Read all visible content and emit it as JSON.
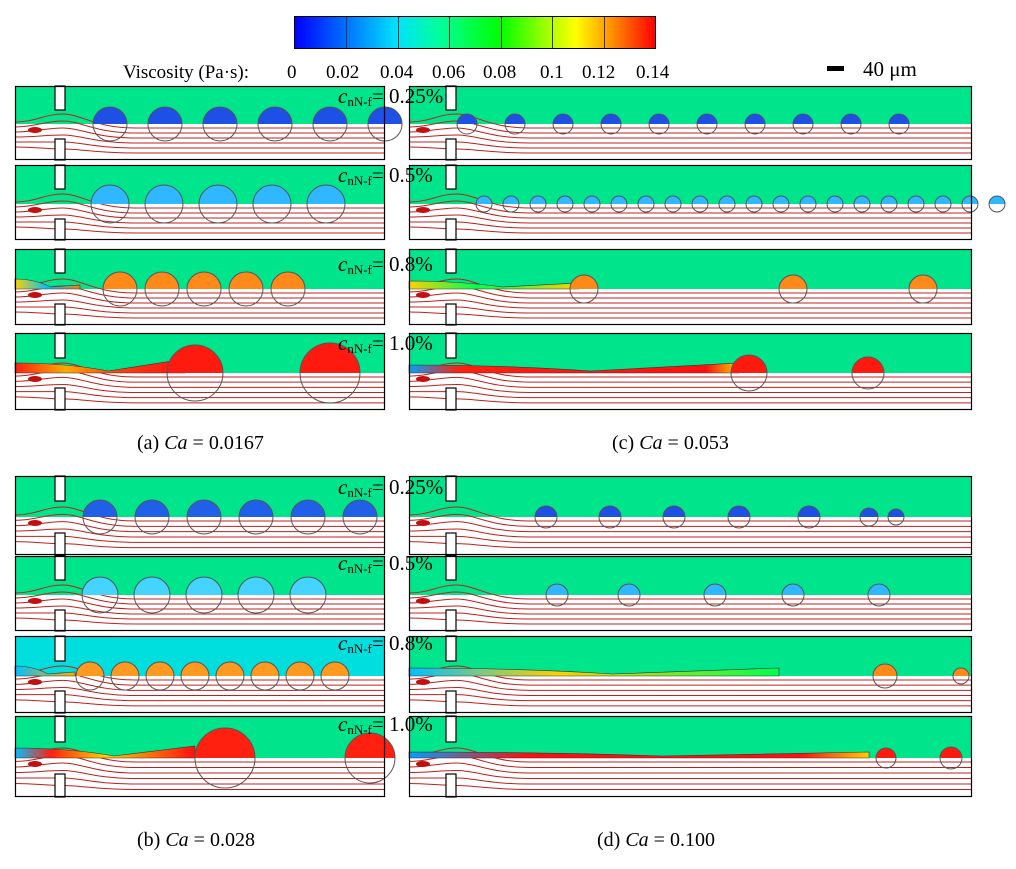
{
  "colorbar": {
    "title": "Viscosity (Pa·s):",
    "ticks": [
      "0",
      "0.02",
      "0.04",
      "0.06",
      "0.08",
      "0.1",
      "0.12",
      "0.14"
    ],
    "colors": [
      "#0000ff",
      "#0070ff",
      "#00e0ff",
      "#00ff9c",
      "#00ff00",
      "#b0ff00",
      "#ffff00",
      "#ff9000",
      "#ff0000"
    ]
  },
  "scale_bar": {
    "label": "40 μm"
  },
  "concentration_labels": [
    {
      "prefix": "c",
      "sub": "nN-f",
      "text": "= 0.25%"
    },
    {
      "prefix": "c",
      "sub": "nN-f",
      "text": "= 0.5%"
    },
    {
      "prefix": "c",
      "sub": "nN-f",
      "text": "= 0.8%"
    },
    {
      "prefix": "c",
      "sub": "nN-f",
      "text": "= 1.0%"
    }
  ],
  "captions": {
    "a": {
      "prefix": "(a) ",
      "var": "Ca",
      "value": " = 0.0167"
    },
    "b": {
      "prefix": "(b) ",
      "var": "Ca",
      "value": " = 0.028"
    },
    "c": {
      "prefix": "(c) ",
      "var": "Ca",
      "value": " = 0.053"
    },
    "d": {
      "prefix": "(d) ",
      "var": "Ca",
      "value": " = 0.100"
    }
  },
  "colors": {
    "continuous_phase": "#00e58c",
    "continuous_phase_high": "#00dede",
    "streamline": "#c0201c",
    "wall": "#000000"
  }
}
